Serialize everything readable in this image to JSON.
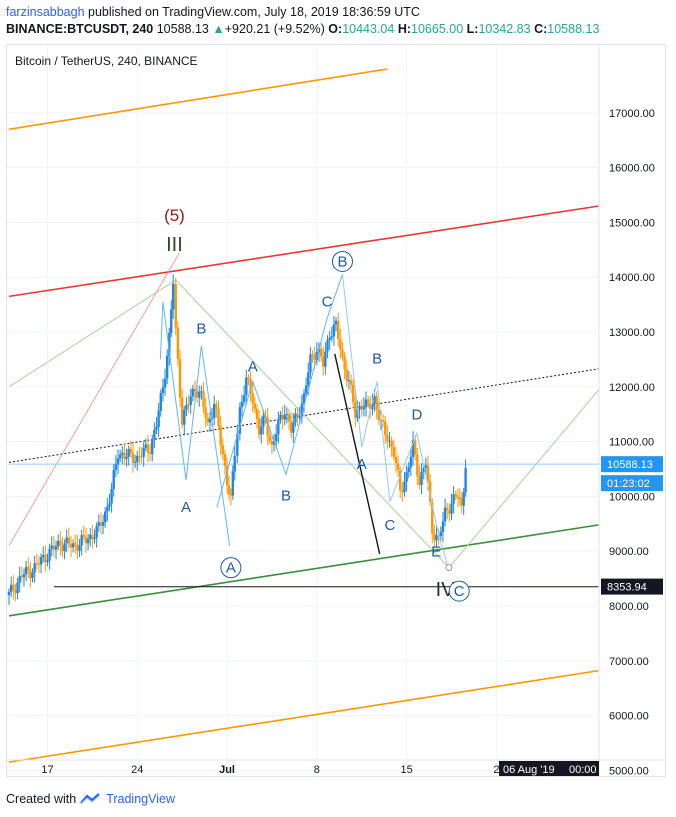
{
  "header": {
    "user": "farzinsabbagh",
    "published_text": "published on TradingView.com, July 18, 2019 18:36:59 UTC"
  },
  "ohlc_bar": {
    "symbol": "BINANCE:BTCUSDT, 240",
    "last": "10588.13",
    "change": "+920.21 (+9.52%)",
    "o_label": "O:",
    "o": "10443.04",
    "h_label": "H:",
    "h": "10665.00",
    "l_label": "L:",
    "l": "10342.83",
    "c_label": "C:",
    "c": "10588.13"
  },
  "colors": {
    "up": "#1e88e5",
    "down": "#ff9800",
    "orange_channel": "#ff9800",
    "red_line": "#e53935",
    "green_line": "#388e3c",
    "wave_blue": "#1e5a9c",
    "price_label_bg": "#2196f3",
    "grid": "#f0f3fa"
  },
  "chart_data": {
    "type": "candlestick",
    "title": "Bitcoin / TetherUS, 240, BINANCE",
    "x_ticks": [
      "17",
      "24",
      "Jul",
      "8",
      "15",
      "2"
    ],
    "x_tick_days": [
      17,
      24,
      31,
      38,
      45,
      52
    ],
    "y_ticks": [
      17000,
      16000,
      15000,
      14000,
      13000,
      12000,
      11000,
      10000,
      9000,
      8000,
      7000,
      6000,
      5000
    ],
    "y_tick_labels": [
      "17000.00",
      "16000.00",
      "15000.00",
      "14000.00",
      "13000.00",
      "12000.00",
      "11000.00",
      "10000.00",
      "9000.00",
      "8000.00",
      "7000.00",
      "6000.00",
      "5000.00"
    ],
    "ylim": [
      4970,
      17800
    ],
    "xlim_days": [
      14,
      60
    ],
    "last_price": 10588.13,
    "last_price_label": "10588.13",
    "countdown": "01:23:02",
    "hline_price": 8353.94,
    "hline_label": "8353.94",
    "crosshair_date": "06 Aug '19",
    "crosshair_time": "00:00",
    "price_path": [
      [
        14.0,
        8200
      ],
      [
        15.0,
        8550
      ],
      [
        16.0,
        8700
      ],
      [
        17.0,
        8950
      ],
      [
        18.0,
        9150
      ],
      [
        19.0,
        9100
      ],
      [
        20.0,
        9200
      ],
      [
        21.0,
        9400
      ],
      [
        21.5,
        9700
      ],
      [
        22.0,
        10100
      ],
      [
        22.5,
        10800
      ],
      [
        23.0,
        10750
      ],
      [
        24.0,
        10700
      ],
      [
        25.0,
        10900
      ],
      [
        25.5,
        11300
      ],
      [
        26.0,
        12000
      ],
      [
        26.5,
        12900
      ],
      [
        26.8,
        13900
      ],
      [
        27.0,
        13000
      ],
      [
        27.5,
        11400
      ],
      [
        28.0,
        11700
      ],
      [
        28.5,
        12000
      ],
      [
        29.0,
        11800
      ],
      [
        29.5,
        11300
      ],
      [
        30.0,
        11700
      ],
      [
        30.5,
        11000
      ],
      [
        31.0,
        10300
      ],
      [
        31.3,
        9900
      ],
      [
        31.6,
        10800
      ],
      [
        32.0,
        11600
      ],
      [
        32.5,
        12100
      ],
      [
        33.0,
        11800
      ],
      [
        33.5,
        11200
      ],
      [
        34.0,
        11400
      ],
      [
        34.5,
        10900
      ],
      [
        35.0,
        11300
      ],
      [
        35.5,
        11600
      ],
      [
        36.0,
        11200
      ],
      [
        36.5,
        11500
      ],
      [
        37.0,
        11800
      ],
      [
        37.5,
        12500
      ],
      [
        38.0,
        12700
      ],
      [
        38.5,
        12400
      ],
      [
        39.0,
        13000
      ],
      [
        39.5,
        13100
      ],
      [
        40.0,
        12500
      ],
      [
        40.5,
        12100
      ],
      [
        41.0,
        11500
      ],
      [
        41.5,
        11700
      ],
      [
        42.0,
        11600
      ],
      [
        42.5,
        11800
      ],
      [
        43.0,
        11300
      ],
      [
        43.5,
        11100
      ],
      [
        44.0,
        10800
      ],
      [
        44.5,
        10100
      ],
      [
        45.0,
        10400
      ],
      [
        45.5,
        10900
      ],
      [
        46.0,
        10300
      ],
      [
        46.5,
        10600
      ],
      [
        47.0,
        9400
      ],
      [
        47.5,
        9200
      ],
      [
        48.0,
        9700
      ],
      [
        48.5,
        9900
      ],
      [
        49.0,
        10000
      ],
      [
        49.3,
        9800
      ],
      [
        49.6,
        10600
      ]
    ],
    "waves": {
      "impulse_peak": {
        "label": "(5)",
        "sub": "III",
        "x": 27.0,
        "y": 14650
      },
      "zigzag_1": [
        {
          "label": "",
          "x": 26.0,
          "y": 13550
        },
        {
          "label": "A",
          "x": 27.8,
          "y": 10300
        },
        {
          "label": "B",
          "x": 29.0,
          "y": 12750
        },
        {
          "label": "C",
          "x": 31.2,
          "y": 9100
        },
        {
          "label": "A",
          "x": 31.0,
          "circled": true
        }
      ],
      "zigzag_2": [
        {
          "label": "A",
          "x": 33.0,
          "y": 12100
        },
        {
          "label": "B",
          "x": 35.6,
          "y": 10400
        },
        {
          "label": "C",
          "x": 38.8,
          "y": 13250
        }
      ],
      "top_b": {
        "label": "B",
        "x": 40.0,
        "y": 14050,
        "circled": true
      },
      "descending": [
        {
          "label": "A",
          "x": 41.5,
          "y": 10900
        },
        {
          "label": "B",
          "x": 42.7,
          "y": 12100
        },
        {
          "label": "C",
          "x": 43.7,
          "y": 9900
        },
        {
          "label": "D",
          "x": 45.8,
          "y": 11150
        },
        {
          "label": "E",
          "x": 47.5,
          "y": 9300
        }
      ],
      "bottom": {
        "label": "IV",
        "circled_label": "C",
        "x": 48.4,
        "y": 8650
      }
    }
  },
  "footer": {
    "created_with": "Created with",
    "brand": "TradingView"
  }
}
